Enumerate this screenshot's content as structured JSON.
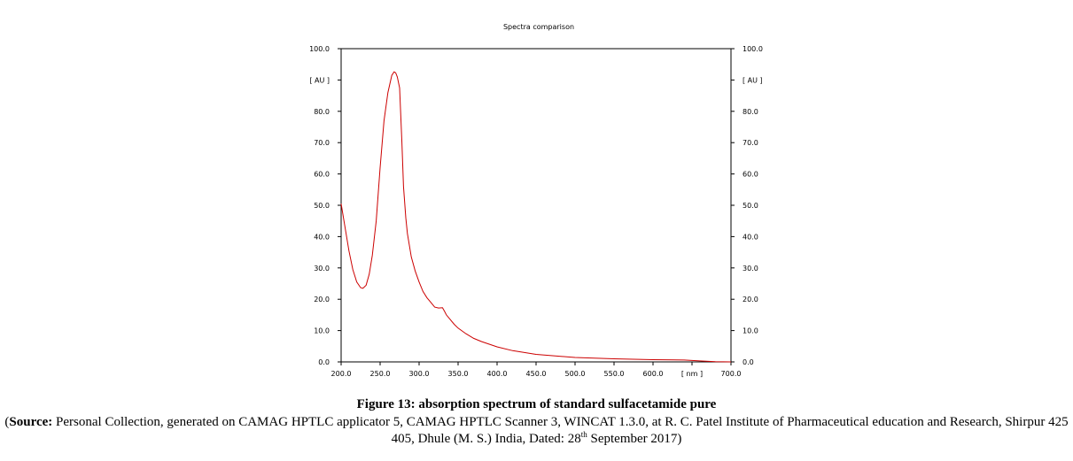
{
  "chart_data": {
    "type": "line",
    "title": "Spectra comparison",
    "xlabel": "[ nm ]",
    "ylabel": "[ AU ]",
    "xlim": [
      200,
      700
    ],
    "ylim": [
      0,
      100
    ],
    "x_ticks": [
      "200.0",
      "250.0",
      "300.0",
      "350.0",
      "400.0",
      "450.0",
      "500.0",
      "550.0",
      "600.0",
      "[ nm ]",
      "700.0"
    ],
    "y_ticks": [
      "100.0",
      "[ AU ]",
      "80.0",
      "70.0",
      "60.0",
      "50.0",
      "40.0",
      "30.0",
      "20.0",
      "10.0",
      "0.0"
    ],
    "grid": false,
    "line_color": "#cc0000",
    "series": [
      {
        "x": [
          200,
          205,
          210,
          215,
          220,
          225,
          228,
          232,
          236,
          240,
          245,
          250,
          255,
          260,
          265,
          268,
          270,
          272,
          275,
          278,
          280,
          283,
          285,
          290,
          295,
          300,
          305,
          310,
          315,
          320,
          325,
          330,
          333,
          335,
          340,
          345,
          350,
          360,
          370,
          380,
          400,
          420,
          450,
          480,
          500,
          550,
          600,
          640,
          660,
          680,
          700
        ],
        "y": [
          50.5,
          43,
          35.5,
          29.5,
          25.5,
          23.7,
          23.5,
          24.5,
          28,
          34,
          45,
          62,
          77,
          86,
          91.5,
          92.6,
          92.3,
          91,
          87.5,
          70,
          56,
          46,
          41,
          33.5,
          29,
          25.5,
          22.5,
          20.5,
          19,
          17.5,
          17.2,
          17.3,
          16,
          15,
          13.5,
          12,
          10.8,
          9,
          7.5,
          6.5,
          4.8,
          3.6,
          2.4,
          1.8,
          1.4,
          1.0,
          0.7,
          0.6,
          0.3,
          0.05,
          0.0
        ]
      }
    ]
  },
  "caption": {
    "figure": "Figure 13: absorption spectrum of standard sulfacetamide pure",
    "source_label": "Source:",
    "source_text": " Personal Collection, generated on CAMAG HPTLC applicator 5, CAMAG HPTLC Scanner 3, WINCAT 1.3.0, at R. C. Patel Institute of Pharmaceutical education and Research, Shirpur 425 405, Dhule (M. S.) India, Dated: 28",
    "source_sup": "th",
    "source_end": " September 2017)"
  }
}
